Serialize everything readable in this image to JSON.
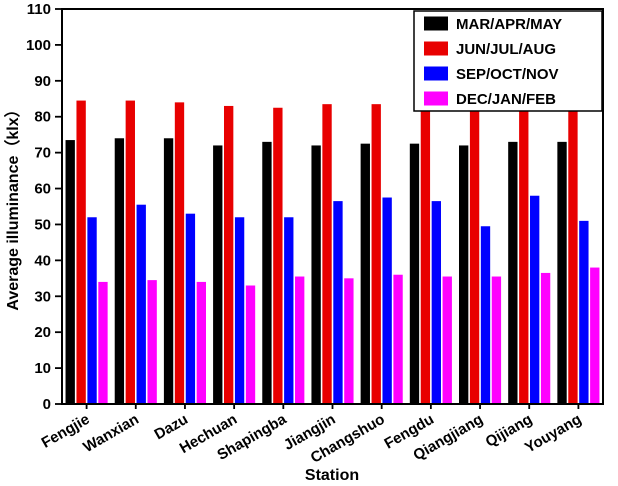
{
  "chart_data": {
    "type": "bar",
    "title": "",
    "xlabel": "Station",
    "ylabel": "Average illuminance（klx）",
    "ylim": [
      0,
      110
    ],
    "ytick_step": 10,
    "grid": false,
    "legend_position": "top-right",
    "categories": [
      "Fengjie",
      "Wanxian",
      "Dazu",
      "Hechuan",
      "Shapingba",
      "Jiangjin",
      "Changshuo",
      "Fengdu",
      "Qiangjiang",
      "Qijiang",
      "Youyang"
    ],
    "series": [
      {
        "name": "MAR/APR/MAY",
        "color": "#000000",
        "values": [
          73.5,
          74,
          74,
          72,
          73,
          72,
          72.5,
          72.5,
          72,
          73,
          73
        ]
      },
      {
        "name": "JUN/JUL/AUG",
        "color": "#e80000",
        "values": [
          84.5,
          84.5,
          84,
          83,
          82.5,
          83.5,
          83.5,
          84,
          83,
          82.5,
          83
        ]
      },
      {
        "name": "SEP/OCT/NOV",
        "color": "#0000ff",
        "values": [
          52,
          55.5,
          53,
          52,
          52,
          56.5,
          57.5,
          56.5,
          49.5,
          58,
          51
        ]
      },
      {
        "name": "DEC/JAN/FEB",
        "color": "#ff00ff",
        "values": [
          34,
          34.5,
          34,
          33,
          35.5,
          35,
          36,
          35.5,
          35.5,
          36.5,
          38
        ]
      }
    ]
  }
}
